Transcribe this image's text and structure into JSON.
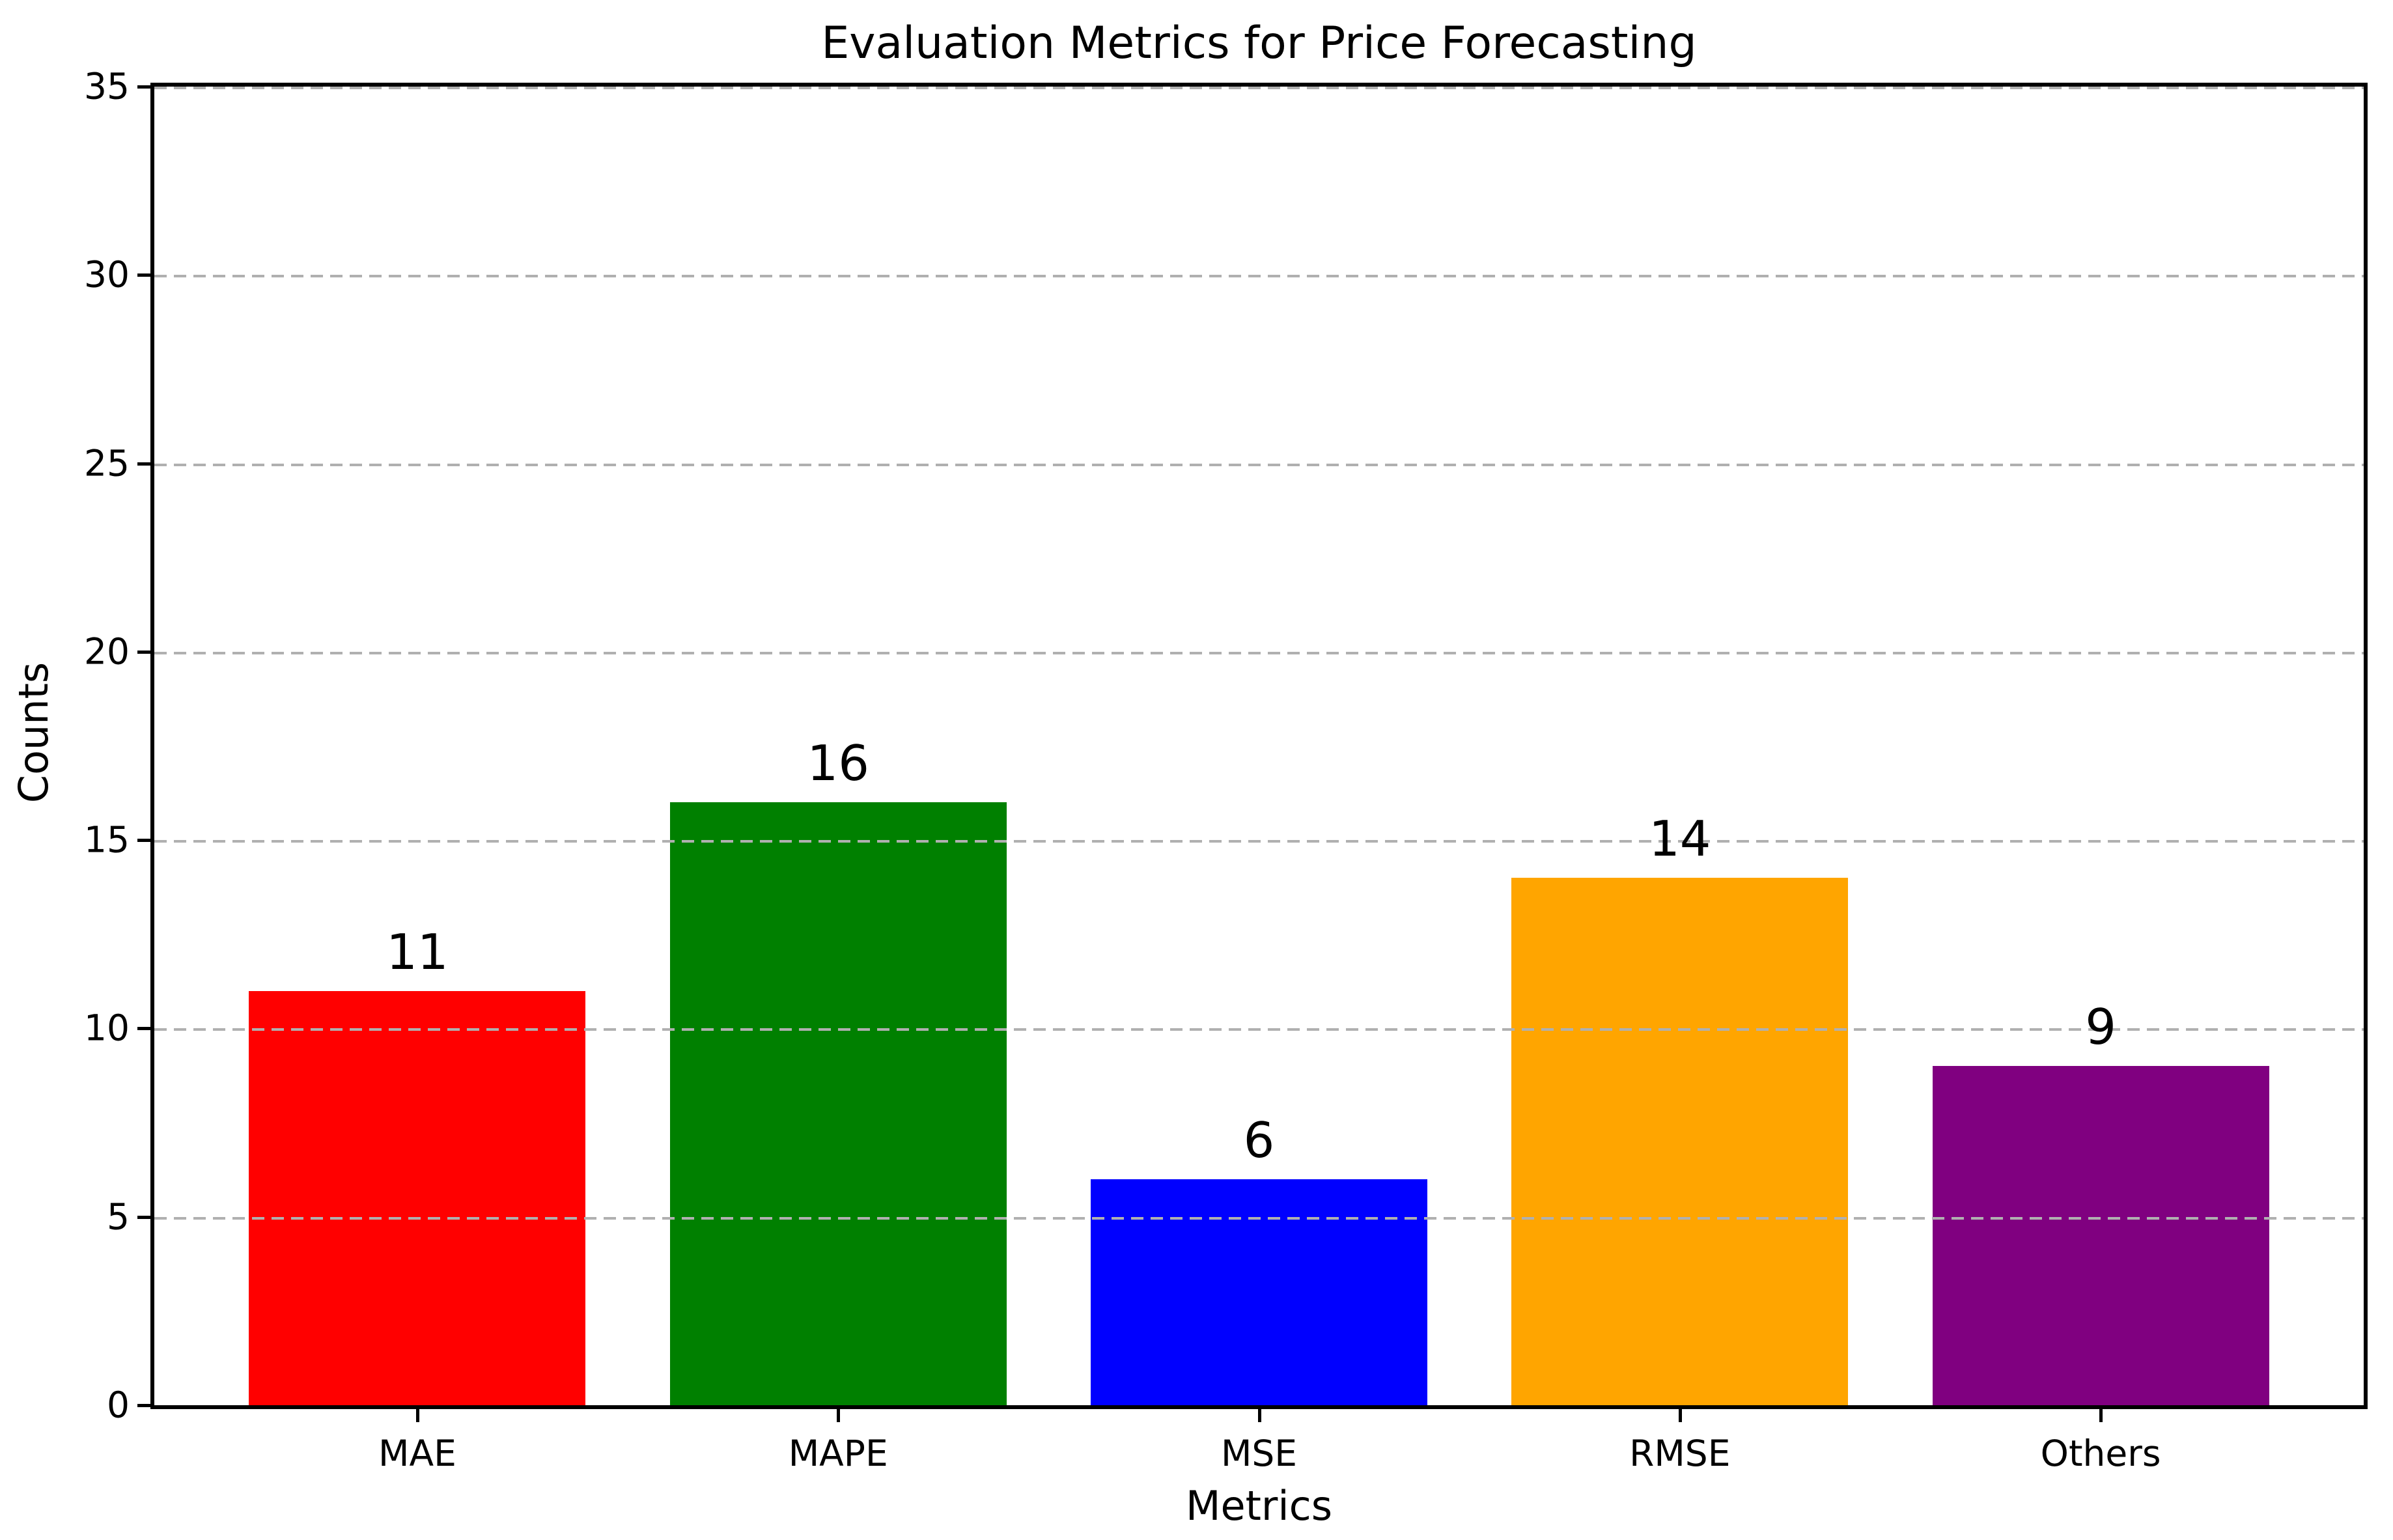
{
  "figure": {
    "title": "Evaluation Metrics for Price Forecasting",
    "xlabel": "Metrics",
    "ylabel": "Counts"
  },
  "chart_data": {
    "type": "bar",
    "title": "Evaluation Metrics for Price Forecasting",
    "xlabel": "Metrics",
    "ylabel": "Counts",
    "categories": [
      "MAE",
      "MAPE",
      "MSE",
      "RMSE",
      "Others"
    ],
    "values": [
      11,
      16,
      6,
      14,
      9
    ],
    "bar_value_labels": [
      "11",
      "16",
      "6",
      "14",
      "9"
    ],
    "bar_colors": [
      "#ff0000",
      "#008000",
      "#0000ff",
      "#ffa500",
      "#800080"
    ],
    "ylim": [
      0,
      35
    ],
    "yticks": [
      0,
      5,
      10,
      15,
      20,
      25,
      30,
      35
    ],
    "bar_width_fraction": 0.8,
    "legend": "none",
    "grid": {
      "axis": "y",
      "linestyle": "dashed",
      "color": "#b0b0b0",
      "drawn_above_bars": true
    }
  },
  "colors": {
    "background": "#ffffff",
    "spine": "#000000",
    "text": "#000000",
    "grid": "#b0b0b0"
  }
}
